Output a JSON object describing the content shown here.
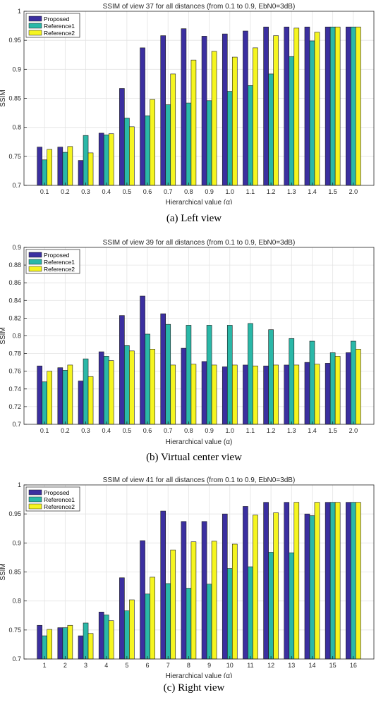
{
  "colors": {
    "Proposed": "#3b2fa0",
    "Reference1": "#2ab8a8",
    "Reference2": "#f5f520"
  },
  "chart_data": [
    {
      "type": "bar",
      "title": "SSIM of view 37 for all distances (from 0.1 to 0.9, EbN0=3dB)",
      "xlabel": "Hierarchical value (α)",
      "ylabel": "SSIM",
      "ylim": [
        0.7,
        1.0
      ],
      "yticks": [
        "0.7",
        "0.75",
        "0.8",
        "0.85",
        "0.9",
        "0.95",
        "1"
      ],
      "grid": true,
      "legend_position": "top-left",
      "categories": [
        "0.1",
        "0.2",
        "0.3",
        "0.4",
        "0.5",
        "0.6",
        "0.7",
        "0.8",
        "0.9",
        "1.0",
        "1.1",
        "1.2",
        "1.3",
        "1.4",
        "1.5",
        "2.0"
      ],
      "series": [
        {
          "name": "Proposed",
          "values": [
            0.766,
            0.766,
            0.743,
            0.79,
            0.867,
            0.937,
            0.958,
            0.97,
            0.957,
            0.961,
            0.966,
            0.973,
            0.973,
            0.973,
            0.973,
            0.973
          ]
        },
        {
          "name": "Reference1",
          "values": [
            0.744,
            0.757,
            0.786,
            0.787,
            0.816,
            0.82,
            0.839,
            0.842,
            0.846,
            0.862,
            0.872,
            0.892,
            0.922,
            0.949,
            0.973,
            0.973
          ]
        },
        {
          "name": "Reference2",
          "values": [
            0.762,
            0.767,
            0.756,
            0.789,
            0.801,
            0.848,
            0.892,
            0.916,
            0.931,
            0.921,
            0.937,
            0.958,
            0.971,
            0.964,
            0.973,
            0.973
          ]
        }
      ]
    },
    {
      "type": "bar",
      "title": "SSIM of view 39 for all distances (from 0.1 to 0.9, EbN0=3dB)",
      "xlabel": "Hierarchical value (α)",
      "ylabel": "SSIM",
      "ylim": [
        0.7,
        0.9
      ],
      "yticks": [
        "0.7",
        "0.72",
        "0.74",
        "0.76",
        "0.78",
        "0.8",
        "0.82",
        "0.84",
        "0.86",
        "0.88",
        "0.9"
      ],
      "grid": true,
      "legend_position": "top-left",
      "categories": [
        "0.1",
        "0.2",
        "0.3",
        "0.4",
        "0.5",
        "0.6",
        "0.7",
        "0.8",
        "0.9",
        "1.0",
        "1.1",
        "1.2",
        "1.3",
        "1.4",
        "1.5",
        "2.0"
      ],
      "series": [
        {
          "name": "Proposed",
          "values": [
            0.766,
            0.764,
            0.749,
            0.782,
            0.823,
            0.845,
            0.825,
            0.786,
            0.771,
            0.765,
            0.767,
            0.766,
            0.767,
            0.77,
            0.769,
            0.781
          ]
        },
        {
          "name": "Reference1",
          "values": [
            0.748,
            0.761,
            0.774,
            0.777,
            0.789,
            0.802,
            0.813,
            0.812,
            0.812,
            0.812,
            0.814,
            0.807,
            0.797,
            0.794,
            0.781,
            0.794
          ]
        },
        {
          "name": "Reference2",
          "values": [
            0.76,
            0.767,
            0.754,
            0.772,
            0.783,
            0.785,
            0.767,
            0.768,
            0.767,
            0.767,
            0.766,
            0.767,
            0.767,
            0.768,
            0.777,
            0.785
          ]
        }
      ]
    },
    {
      "type": "bar",
      "title": "SSIM of view 41 for all distances (from 0.1 to 0.9, EbN0=3dB)",
      "xlabel": "Hierarchical value (α)",
      "ylabel": "SSIM",
      "ylim": [
        0.7,
        1.0
      ],
      "yticks": [
        "0.7",
        "0.75",
        "0.8",
        "0.85",
        "0.9",
        "0.95",
        "1"
      ],
      "grid": true,
      "legend_position": "top-left",
      "categories": [
        "1",
        "2",
        "3",
        "4",
        "5",
        "6",
        "7",
        "8",
        "9",
        "10",
        "11",
        "12",
        "13",
        "14",
        "15",
        "16"
      ],
      "series": [
        {
          "name": "Proposed",
          "values": [
            0.758,
            0.754,
            0.74,
            0.781,
            0.84,
            0.904,
            0.955,
            0.937,
            0.937,
            0.95,
            0.963,
            0.97,
            0.97,
            0.95,
            0.97,
            0.97
          ]
        },
        {
          "name": "Reference1",
          "values": [
            0.74,
            0.754,
            0.762,
            0.776,
            0.783,
            0.812,
            0.83,
            0.822,
            0.829,
            0.856,
            0.859,
            0.884,
            0.883,
            0.947,
            0.97,
            0.97
          ]
        },
        {
          "name": "Reference2",
          "values": [
            0.751,
            0.758,
            0.744,
            0.766,
            0.802,
            0.841,
            0.888,
            0.902,
            0.903,
            0.898,
            0.948,
            0.952,
            0.97,
            0.97,
            0.97,
            0.97
          ]
        }
      ]
    }
  ],
  "captions": [
    "(a) Left view",
    "(b) Virtual center view",
    "(c) Right view"
  ]
}
